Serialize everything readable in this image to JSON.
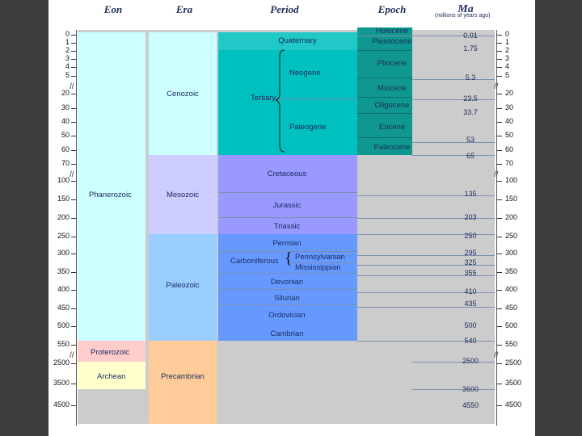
{
  "headers": {
    "eon": "Eon",
    "era": "Era",
    "period": "Period",
    "epoch": "Epoch",
    "ma": "Ma",
    "ma_note": "(millions of years ago)"
  },
  "axis_ticks": [
    "0",
    "1",
    "2",
    "3",
    "4",
    "5",
    "20",
    "30",
    "40",
    "50",
    "60",
    "70",
    "100",
    "150",
    "200",
    "250",
    "300",
    "350",
    "400",
    "450",
    "500",
    "550",
    "2500",
    "3500",
    "4500"
  ],
  "eons": {
    "phanerozoic": "Phanerozoic",
    "proterozoic": "Proterozoic",
    "archean": "Archean"
  },
  "eras": {
    "cenozoic": "Cenozoic",
    "mesozoic": "Mesozoic",
    "paleozoic": "Paleozoic",
    "precambrian": "Precambrian"
  },
  "periods": {
    "quaternary": "Quaternary",
    "tertiary": "Tertiary",
    "neogene": "Neogene",
    "paleogene": "Paleogene",
    "cretaceous": "Cretaceous",
    "jurassic": "Jurassic",
    "triassic": "Triassic",
    "permian": "Permian",
    "carboniferous": "Carboniferous",
    "pennsylvanian": "Pennsylvanian",
    "mississippian": "Mississippian",
    "devonian": "Devonian",
    "silurian": "Silurian",
    "ordovician": "Ordovician",
    "cambrian": "Cambrian"
  },
  "epochs": {
    "holocene": "Holocene",
    "pleistocene": "Pleistocene",
    "pliocene": "Pliocene",
    "miocene": "Miocene",
    "oligocene": "Oligocene",
    "eocene": "Eocene",
    "paleocene": "Paleocene"
  },
  "ma_values": [
    "0.01",
    "1.75",
    "5.3",
    "23.5",
    "33.7",
    "53",
    "65",
    "135",
    "203",
    "250",
    "295",
    "325",
    "355",
    "410",
    "435",
    "500",
    "540",
    "2500",
    "3600",
    "4550"
  ],
  "colors": {
    "phanerozoic": "#ccffff",
    "cenozoic": "#ccffff",
    "mesozoic": "#ccccff",
    "paleozoic": "#99ccff",
    "proterozoic": "#ffcccc",
    "archean": "#ffffcc",
    "precambrian": "#ffcc99",
    "tertiary": "#00c0c0",
    "quaternary": "#20c8c8",
    "epoch": "#109890",
    "mesozoic_periods": "#9999ff",
    "paleozoic_periods": "#6699ff",
    "ma_band": "#cccccc"
  }
}
